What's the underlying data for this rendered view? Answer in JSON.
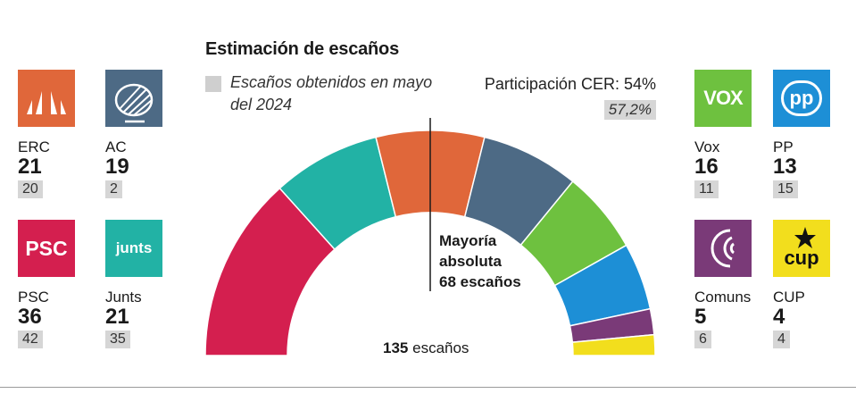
{
  "title": "Estimación de escaños",
  "legend": {
    "text": "Escaños obtenidos en mayo del 2024",
    "swatch_color": "#cfcfcf"
  },
  "turnout": {
    "label": "Participación CER: 54%",
    "previous": "57,2%"
  },
  "majority": {
    "line1": "Mayoría",
    "line2": "absoluta",
    "line3": "68 escaños"
  },
  "total": {
    "number": "135",
    "unit": "escaños"
  },
  "parties": [
    {
      "key": "erc",
      "name": "ERC",
      "seats": "21",
      "previous": "20",
      "color": "#e0673a",
      "icon": "erc-logo-icon"
    },
    {
      "key": "ac",
      "name": "AC",
      "seats": "19",
      "previous": "2",
      "color": "#4d6a85",
      "icon": "ac-logo-icon"
    },
    {
      "key": "psc",
      "name": "PSC",
      "seats": "36",
      "previous": "42",
      "color": "#d41f4f",
      "icon": "psc-logo-icon",
      "logo_text": "PSC"
    },
    {
      "key": "junts",
      "name": "Junts",
      "seats": "21",
      "previous": "35",
      "color": "#22b2a5",
      "icon": "junts-logo-icon",
      "logo_text": "junts"
    },
    {
      "key": "vox",
      "name": "Vox",
      "seats": "16",
      "previous": "11",
      "color": "#6ec13f",
      "icon": "vox-logo-icon",
      "logo_text": "VOX"
    },
    {
      "key": "pp",
      "name": "PP",
      "seats": "13",
      "previous": "15",
      "color": "#1d8fd6",
      "icon": "pp-logo-icon",
      "logo_text": "pp"
    },
    {
      "key": "comuns",
      "name": "Comuns",
      "seats": "5",
      "previous": "6",
      "color": "#7a3a78",
      "icon": "comuns-logo-icon"
    },
    {
      "key": "cup",
      "name": "CUP",
      "seats": "4",
      "previous": "4",
      "color": "#f2de1d",
      "icon": "cup-logo-icon",
      "logo_text": "cup"
    }
  ],
  "chart_data": {
    "type": "pie",
    "variant": "hemicycle",
    "total_seats": 135,
    "majority_seats": 68,
    "order": [
      "PSC",
      "Junts",
      "ERC",
      "AC",
      "Vox",
      "PP",
      "Comuns",
      "CUP"
    ],
    "series": [
      {
        "name": "PSC",
        "value": 36,
        "color": "#d41f4f"
      },
      {
        "name": "Junts",
        "value": 21,
        "color": "#22b2a5"
      },
      {
        "name": "ERC",
        "value": 21,
        "color": "#e0673a"
      },
      {
        "name": "AC",
        "value": 19,
        "color": "#4d6a85"
      },
      {
        "name": "Vox",
        "value": 16,
        "color": "#6ec13f"
      },
      {
        "name": "PP",
        "value": 13,
        "color": "#1d8fd6"
      },
      {
        "name": "Comuns",
        "value": 5,
        "color": "#7a3a78"
      },
      {
        "name": "CUP",
        "value": 4,
        "color": "#f2de1d"
      }
    ]
  }
}
